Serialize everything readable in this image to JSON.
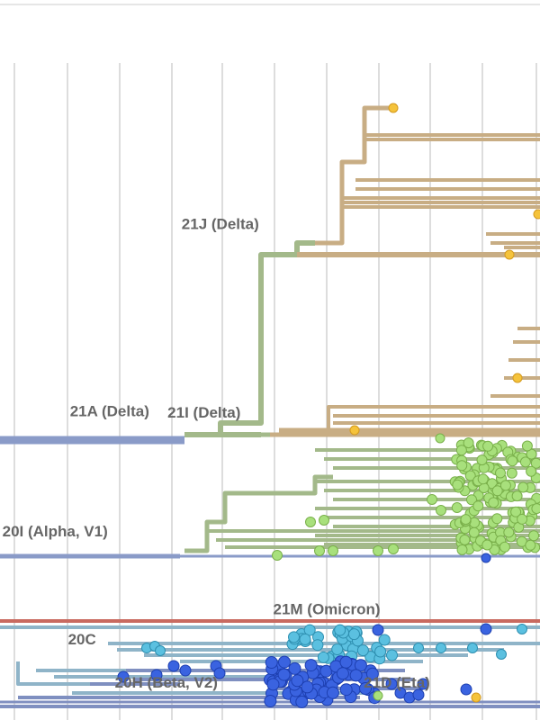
{
  "chart_data": {
    "type": "scatter",
    "title": "",
    "grid": true,
    "clade_labels": [
      {
        "text": "21J (Delta)",
        "x": 0.408,
        "y": 0.318
      },
      {
        "text": "21A (Delta)",
        "x": 0.203,
        "y": 0.578
      },
      {
        "text": "21I (Delta)",
        "x": 0.378,
        "y": 0.58
      },
      {
        "text": "20I (Alpha, V1)",
        "x": 0.102,
        "y": 0.745
      },
      {
        "text": "21M (Omicron)",
        "x": 0.605,
        "y": 0.853
      },
      {
        "text": "20C",
        "x": 0.152,
        "y": 0.895
      },
      {
        "text": "20H (Beta, V2)",
        "x": 0.308,
        "y": 0.955
      },
      {
        "text": "21D (Eta)",
        "x": 0.735,
        "y": 0.955
      }
    ],
    "colors": {
      "delta": "#c8ad84",
      "alpha": "#a3b98a",
      "root": "#8a9bc8",
      "omicron": "#c96a60",
      "c20": "#8fb4c8",
      "beta": "#7f8fc0",
      "tip_yellow": "#f5c33b",
      "tip_green": "#a8e07c",
      "tip_cyan": "#5bc0e0",
      "tip_blue": "#3a63e0",
      "gridline": "#dddddd"
    }
  }
}
